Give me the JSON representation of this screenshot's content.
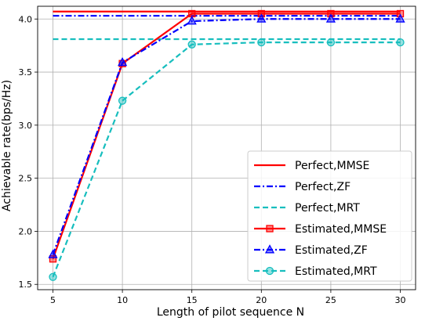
{
  "chart_data": {
    "type": "line",
    "title": "",
    "xlabel": "Length of pilot sequence N",
    "ylabel": "Achievable rate(bps/Hz)",
    "x": [
      5,
      10,
      15,
      20,
      25,
      30
    ],
    "xlim": [
      3.9,
      31.1
    ],
    "ylim": [
      1.45,
      4.12
    ],
    "xticks": [
      "5",
      "10",
      "15",
      "20",
      "25",
      "30"
    ],
    "yticks": [
      "1.5",
      "2.0",
      "2.5",
      "3.0",
      "3.5",
      "4.0"
    ],
    "grid": true,
    "legend_position": "bottom-right",
    "series": [
      {
        "name": "Perfect,MMSE",
        "values": [
          4.07,
          4.07,
          4.07,
          4.07,
          4.07,
          4.07
        ],
        "color": "#ff0000",
        "dash": "solid",
        "marker": "none"
      },
      {
        "name": "Perfect,ZF",
        "values": [
          4.03,
          4.03,
          4.03,
          4.03,
          4.03,
          4.03
        ],
        "color": "#0000ff",
        "dash": "dashdot",
        "marker": "none"
      },
      {
        "name": "Perfect,MRT",
        "values": [
          3.81,
          3.81,
          3.81,
          3.81,
          3.81,
          3.81
        ],
        "color": "#17bebe",
        "dash": "dashed",
        "marker": "none"
      },
      {
        "name": "Estimated,MMSE",
        "values": [
          1.74,
          3.58,
          4.05,
          4.05,
          4.05,
          4.05
        ],
        "color": "#ff0000",
        "dash": "solid",
        "marker": "square"
      },
      {
        "name": "Estimated,ZF",
        "values": [
          1.78,
          3.59,
          3.98,
          4.0,
          4.0,
          4.0
        ],
        "color": "#0000ff",
        "dash": "dashdot",
        "marker": "triangle"
      },
      {
        "name": "Estimated,MRT",
        "values": [
          1.57,
          3.23,
          3.76,
          3.78,
          3.78,
          3.78
        ],
        "color": "#17bebe",
        "dash": "dashed",
        "marker": "circle"
      }
    ]
  }
}
